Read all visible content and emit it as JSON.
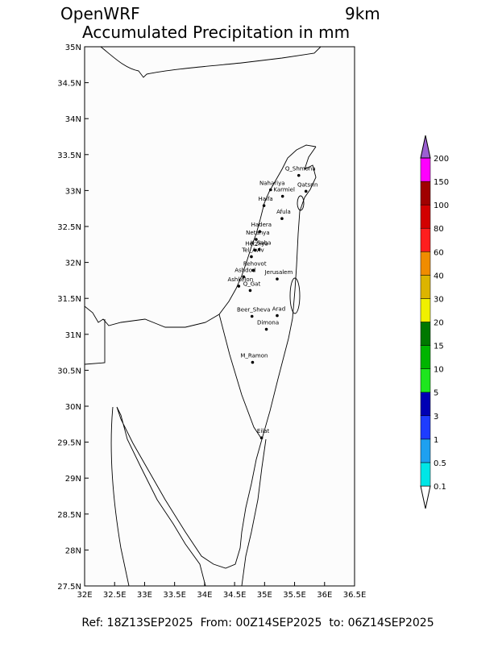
{
  "header": {
    "model": "OpenWRF",
    "resolution": "9km",
    "title": "Accumulated Precipitation in mm"
  },
  "footer": "Ref: 18Z13SEP2025  From: 00Z14SEP2025  to: 06Z14SEP2025",
  "map": {
    "xlim": [
      32,
      36.5
    ],
    "ylim": [
      27.5,
      35
    ],
    "xticks": [
      {
        "value": 32,
        "label": "32E"
      },
      {
        "value": 32.5,
        "label": "32.5E"
      },
      {
        "value": 33,
        "label": "33E"
      },
      {
        "value": 33.5,
        "label": "33.5E"
      },
      {
        "value": 34,
        "label": "34E"
      },
      {
        "value": 34.5,
        "label": "34.5E"
      },
      {
        "value": 35,
        "label": "35E"
      },
      {
        "value": 35.5,
        "label": "35.5E"
      },
      {
        "value": 36,
        "label": "36E"
      },
      {
        "value": 36.5,
        "label": "36.5E"
      }
    ],
    "yticks": [
      {
        "value": 27.5,
        "label": "27.5N"
      },
      {
        "value": 28,
        "label": "28N"
      },
      {
        "value": 28.5,
        "label": "28.5N"
      },
      {
        "value": 29,
        "label": "29N"
      },
      {
        "value": 29.5,
        "label": "29.5N"
      },
      {
        "value": 30,
        "label": "30N"
      },
      {
        "value": 30.5,
        "label": "30.5N"
      },
      {
        "value": 31,
        "label": "31N"
      },
      {
        "value": 31.5,
        "label": "31.5N"
      },
      {
        "value": 32,
        "label": "32N"
      },
      {
        "value": 32.5,
        "label": "32.5N"
      },
      {
        "value": 33,
        "label": "33N"
      },
      {
        "value": 33.5,
        "label": "33.5N"
      },
      {
        "value": 34,
        "label": "34N"
      },
      {
        "value": 34.5,
        "label": "34.5N"
      },
      {
        "value": 35,
        "label": "35N"
      }
    ],
    "cities": [
      {
        "name": "Q_Shmona",
        "lon": 35.57,
        "lat": 33.21
      },
      {
        "name": "Qatsrin",
        "lon": 35.69,
        "lat": 32.99
      },
      {
        "name": "Nahariya",
        "lon": 35.1,
        "lat": 33.01
      },
      {
        "name": "Karmiel",
        "lon": 35.3,
        "lat": 32.92
      },
      {
        "name": "Haifa",
        "lon": 34.99,
        "lat": 32.79
      },
      {
        "name": "Afula",
        "lon": 35.29,
        "lat": 32.61
      },
      {
        "name": "Hadera",
        "lon": 34.92,
        "lat": 32.43
      },
      {
        "name": "Netanya",
        "lon": 34.86,
        "lat": 32.32
      },
      {
        "name": "Herzliya",
        "lon": 34.84,
        "lat": 32.17
      },
      {
        "name": "K_Saba",
        "lon": 34.91,
        "lat": 32.18
      },
      {
        "name": "Tel_Aviv",
        "lon": 34.78,
        "lat": 32.08
      },
      {
        "name": "Rehovot",
        "lon": 34.81,
        "lat": 31.89
      },
      {
        "name": "Ashdod",
        "lon": 34.65,
        "lat": 31.8
      },
      {
        "name": "Ashkelon",
        "lon": 34.57,
        "lat": 31.67
      },
      {
        "name": "Q_Gat",
        "lon": 34.76,
        "lat": 31.61
      },
      {
        "name": "Jerusalem",
        "lon": 35.21,
        "lat": 31.77
      },
      {
        "name": "Beer_Sheva",
        "lon": 34.79,
        "lat": 31.25
      },
      {
        "name": "Arad",
        "lon": 35.21,
        "lat": 31.26
      },
      {
        "name": "Dimona",
        "lon": 35.03,
        "lat": 31.07
      },
      {
        "name": "M_Ramon",
        "lon": 34.8,
        "lat": 30.61
      },
      {
        "name": "Eilat",
        "lon": 34.95,
        "lat": 29.56
      }
    ]
  },
  "colorbar": {
    "levels": [
      0.1,
      0.5,
      1,
      3,
      5,
      10,
      15,
      20,
      30,
      40,
      60,
      80,
      100,
      150,
      200
    ],
    "colors": [
      "#ffffff",
      "#00e6e6",
      "#1ea0f0",
      "#1e3cff",
      "#0000b4",
      "#1ee61e",
      "#00b400",
      "#007800",
      "#f0f000",
      "#dcb400",
      "#f08c00",
      "#ff1e1e",
      "#d20000",
      "#a00000",
      "#ff00ff",
      "#9b5fd2",
      "#555555"
    ]
  }
}
